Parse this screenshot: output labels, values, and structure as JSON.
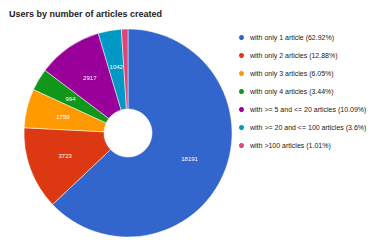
{
  "chart_data": {
    "type": "pie",
    "title": "Users by number of articles created",
    "categories": [
      "with only 1 article (62.92%)",
      "with only 2 articles (12.88%)",
      "with only 3 articles (6.05%)",
      "with only 4 articles (3.44%)",
      "with >= 5 and <= 20 articles (10.09%)",
      "with >= 20 and <= 100 articles (3.6%)",
      "with >100 articles (1.01%)"
    ],
    "values": [
      18191,
      3723,
      1750,
      994,
      2917,
      1042,
      292
    ],
    "value_labels": [
      "18191",
      "3723",
      "1750",
      "994",
      "2917",
      "1042",
      null
    ],
    "colors": [
      "#3366cc",
      "#dc3912",
      "#ff9900",
      "#109618",
      "#990099",
      "#0099c6",
      "#dd4477"
    ],
    "data_labels": true,
    "legend": "right"
  }
}
